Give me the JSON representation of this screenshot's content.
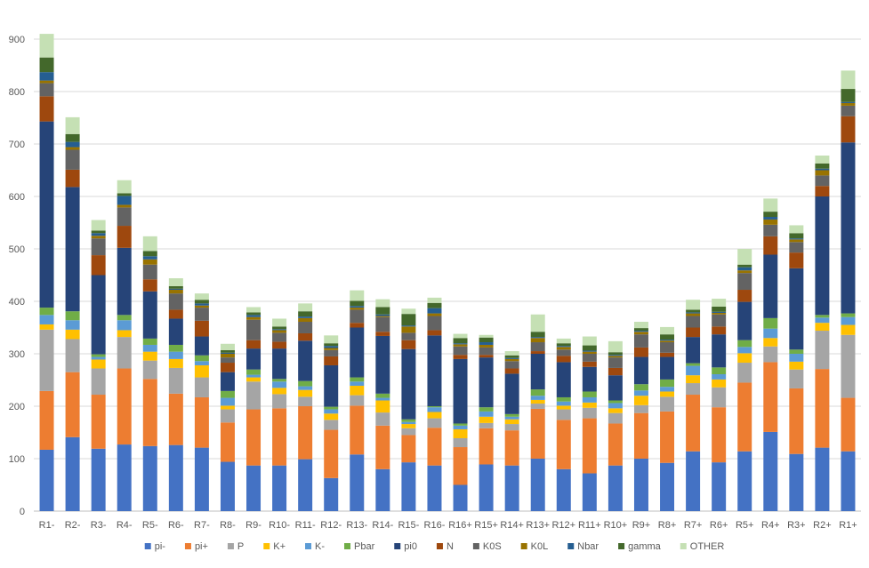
{
  "chart_data": {
    "type": "bar",
    "stacked": true,
    "title": "",
    "xlabel": "",
    "ylabel": "",
    "ylim": [
      0,
      900
    ],
    "yticks": [
      0,
      100,
      200,
      300,
      400,
      500,
      600,
      700,
      800,
      900
    ],
    "grid": "horizontal",
    "legend_position": "bottom",
    "categories": [
      "R1-",
      "R2-",
      "R3-",
      "R4-",
      "R5-",
      "R6-",
      "R7-",
      "R8-",
      "R9-",
      "R10-",
      "R11-",
      "R12-",
      "R13-",
      "R14-",
      "R15-",
      "R16-",
      "R16+",
      "R15+",
      "R14+",
      "R13+",
      "R12+",
      "R11+",
      "R10+",
      "R9+",
      "R8+",
      "R7+",
      "R6+",
      "R5+",
      "R4+",
      "R3+",
      "R2+",
      "R1+"
    ],
    "series": [
      {
        "name": "pi-",
        "color": "#4472C4",
        "values": [
          117,
          141,
          119,
          127,
          124,
          126,
          121,
          94,
          87,
          87,
          99,
          63,
          108,
          80,
          93,
          87,
          50,
          89,
          87,
          100,
          80,
          72,
          87,
          100,
          92,
          114,
          93,
          114,
          151,
          109,
          121,
          114
        ]
      },
      {
        "name": "pi+",
        "color": "#ED7D31",
        "values": [
          112,
          124,
          103,
          145,
          128,
          98,
          96,
          75,
          107,
          109,
          101,
          92,
          93,
          83,
          52,
          72,
          72,
          69,
          67,
          95,
          94,
          105,
          80,
          87,
          98,
          108,
          105,
          131,
          133,
          125,
          150,
          102
        ]
      },
      {
        "name": "P",
        "color": "#A5A5A5",
        "values": [
          117,
          63,
          50,
          60,
          35,
          49,
          38,
          25,
          53,
          27,
          18,
          19,
          20,
          25,
          13,
          18,
          17,
          10,
          12,
          10,
          20,
          20,
          20,
          15,
          28,
          22,
          38,
          38,
          30,
          36,
          73,
          120
        ]
      },
      {
        "name": "K+",
        "color": "#FFC000",
        "values": [
          10,
          18,
          17,
          13,
          17,
          17,
          23,
          7,
          8,
          12,
          13,
          12,
          18,
          23,
          8,
          12,
          17,
          12,
          9,
          7,
          7,
          10,
          9,
          18,
          10,
          15,
          15,
          18,
          16,
          15,
          15,
          19
        ]
      },
      {
        "name": "K-",
        "color": "#5B9BD5",
        "values": [
          18,
          18,
          5,
          19,
          13,
          14,
          8,
          15,
          5,
          12,
          7,
          8,
          8,
          5,
          4,
          9,
          7,
          10,
          5,
          8,
          8,
          10,
          10,
          10,
          9,
          18,
          10,
          12,
          18,
          15,
          10,
          15
        ]
      },
      {
        "name": "Pbar",
        "color": "#70AD47",
        "values": [
          14,
          17,
          5,
          10,
          12,
          13,
          11,
          13,
          10,
          5,
          10,
          5,
          8,
          8,
          5,
          2,
          4,
          8,
          5,
          12,
          8,
          11,
          5,
          12,
          14,
          5,
          13,
          13,
          20,
          8,
          5,
          7
        ]
      },
      {
        "name": "pi0",
        "color": "#264478",
        "values": [
          355,
          237,
          151,
          128,
          90,
          50,
          36,
          36,
          40,
          58,
          77,
          79,
          95,
          110,
          134,
          135,
          123,
          95,
          77,
          68,
          67,
          47,
          48,
          52,
          43,
          50,
          63,
          73,
          121,
          155,
          226,
          326
        ]
      },
      {
        "name": "N",
        "color": "#9E480E",
        "values": [
          48,
          33,
          38,
          42,
          23,
          17,
          30,
          18,
          16,
          13,
          14,
          17,
          9,
          8,
          17,
          10,
          8,
          5,
          10,
          5,
          12,
          10,
          14,
          18,
          8,
          18,
          15,
          23,
          35,
          30,
          20,
          50
        ]
      },
      {
        "name": "K0S",
        "color": "#636363",
        "values": [
          25,
          38,
          32,
          35,
          28,
          31,
          25,
          10,
          39,
          17,
          22,
          12,
          25,
          28,
          14,
          27,
          16,
          14,
          14,
          17,
          12,
          15,
          20,
          25,
          20,
          22,
          23,
          32,
          22,
          20,
          20,
          20
        ]
      },
      {
        "name": "K0L",
        "color": "#997300",
        "values": [
          5,
          5,
          5,
          5,
          10,
          7,
          4,
          7,
          5,
          5,
          7,
          4,
          4,
          2,
          12,
          5,
          4,
          5,
          4,
          8,
          5,
          4,
          3,
          5,
          3,
          5,
          3,
          5,
          10,
          5,
          10,
          5
        ]
      },
      {
        "name": "Nbar",
        "color": "#255E91",
        "values": [
          16,
          10,
          5,
          17,
          6,
          2,
          4,
          2,
          4,
          2,
          3,
          4,
          3,
          3,
          2,
          10,
          2,
          5,
          2,
          2,
          2,
          2,
          2,
          2,
          2,
          2,
          2,
          6,
          5,
          2,
          3,
          2
        ]
      },
      {
        "name": "gamma",
        "color": "#43682B",
        "values": [
          28,
          15,
          5,
          5,
          10,
          5,
          7,
          5,
          5,
          5,
          10,
          5,
          10,
          14,
          22,
          10,
          10,
          9,
          5,
          10,
          5,
          10,
          5,
          5,
          10,
          5,
          10,
          5,
          10,
          10,
          10,
          25
        ]
      },
      {
        "name": "OTHER",
        "color": "#C5E0B4",
        "values": [
          45,
          32,
          20,
          25,
          28,
          15,
          12,
          12,
          10,
          15,
          15,
          15,
          20,
          15,
          10,
          10,
          8,
          5,
          8,
          33,
          9,
          17,
          21,
          12,
          14,
          19,
          15,
          30,
          25,
          15,
          15,
          35
        ]
      }
    ]
  }
}
